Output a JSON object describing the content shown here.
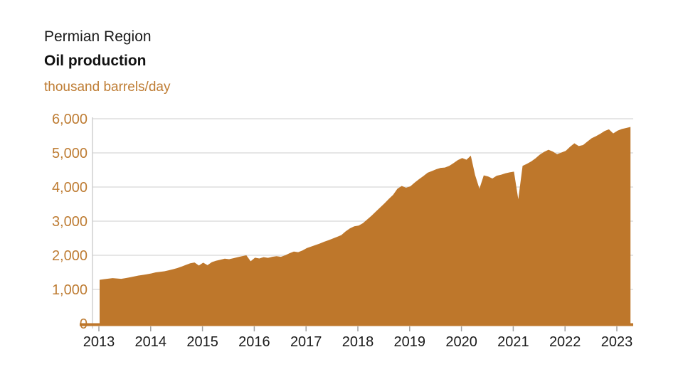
{
  "header": {
    "region": "Permian Region",
    "title": "Oil production",
    "unit": "thousand barrels/day"
  },
  "colors": {
    "area_fill": "#be772b",
    "baseline": "#be772b",
    "label_orange": "#be7c33",
    "gridline": "#d7d7d7",
    "axis_line": "#c9c9c9",
    "tick": "#a0a0a0",
    "x_label": "#1a1a1a"
  },
  "chart_data": {
    "type": "area",
    "title": "Permian Region Oil production",
    "ylabel": "thousand barrels/day",
    "xlabel": "",
    "grid": true,
    "legend": "none",
    "ylim": [
      0,
      6000
    ],
    "y_tick_interval": 1000,
    "y_tick_labels": [
      "0",
      "1,000",
      "2,000",
      "3,000",
      "4,000",
      "5,000",
      "6,000"
    ],
    "x_tick_labels": [
      "2013",
      "2014",
      "2015",
      "2016",
      "2017",
      "2018",
      "2019",
      "2020",
      "2021",
      "2022",
      "2023"
    ],
    "x_start_month": "2013-01",
    "x_end_month": "2023-04",
    "series": [
      {
        "name": "Permian region oil production (thousand barrels/day), monthly Jan 2013 - Apr 2023",
        "monthly_values": [
          1280,
          1300,
          1315,
          1330,
          1320,
          1310,
          1330,
          1355,
          1380,
          1405,
          1425,
          1445,
          1470,
          1500,
          1515,
          1530,
          1560,
          1590,
          1625,
          1670,
          1720,
          1765,
          1790,
          1700,
          1785,
          1710,
          1800,
          1840,
          1870,
          1900,
          1885,
          1915,
          1945,
          1975,
          2000,
          1825,
          1930,
          1905,
          1945,
          1925,
          1955,
          1975,
          1955,
          2000,
          2060,
          2110,
          2090,
          2140,
          2210,
          2255,
          2300,
          2345,
          2395,
          2440,
          2490,
          2540,
          2590,
          2700,
          2790,
          2850,
          2870,
          2940,
          3050,
          3160,
          3280,
          3400,
          3520,
          3650,
          3770,
          3950,
          4030,
          3980,
          4020,
          4130,
          4230,
          4320,
          4420,
          4470,
          4520,
          4560,
          4570,
          4620,
          4700,
          4790,
          4850,
          4800,
          4920,
          4350,
          3950,
          4340,
          4310,
          4250,
          4330,
          4360,
          4400,
          4430,
          4450,
          3640,
          4620,
          4680,
          4750,
          4840,
          4950,
          5030,
          5090,
          5040,
          4960,
          5010,
          5060,
          5180,
          5280,
          5200,
          5230,
          5330,
          5430,
          5490,
          5560,
          5640,
          5690,
          5570,
          5650,
          5700,
          5730,
          5760
        ]
      }
    ]
  }
}
